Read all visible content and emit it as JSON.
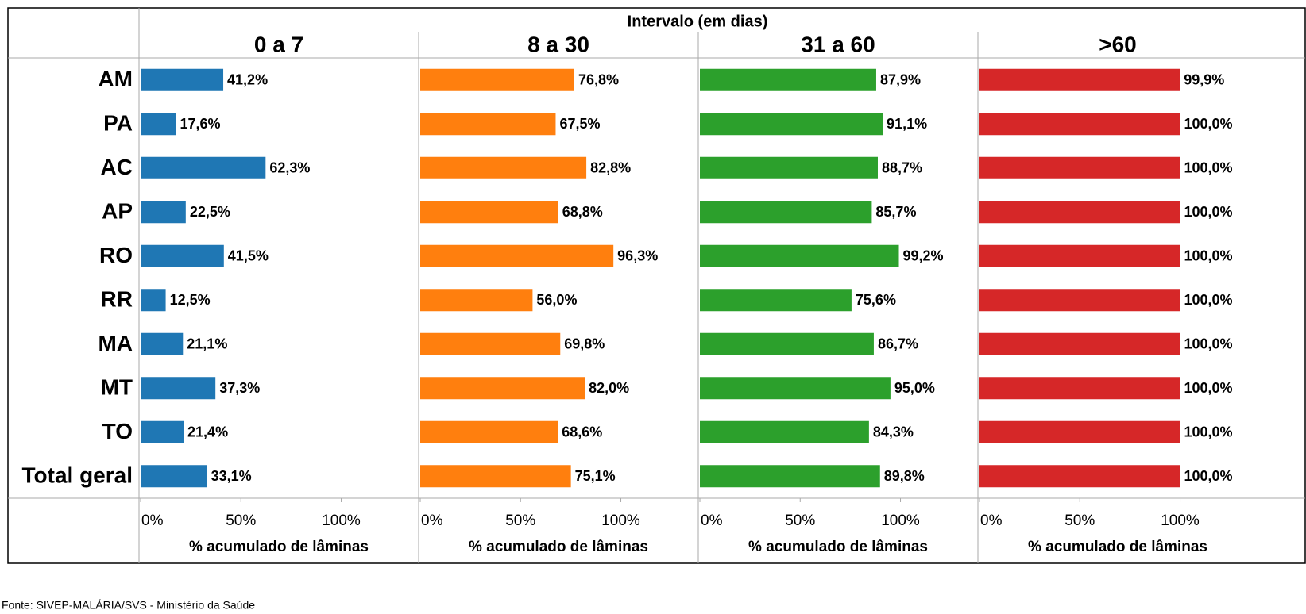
{
  "chart_data": {
    "type": "bar",
    "orientation": "horizontal",
    "title": "Intervalo (em dias)",
    "categories": [
      "AM",
      "PA",
      "AC",
      "AP",
      "RO",
      "RR",
      "MA",
      "MT",
      "TO",
      "Total geral"
    ],
    "series": [
      {
        "name": "0 a 7",
        "color": "#1f77b4",
        "values": [
          41.2,
          17.6,
          62.3,
          22.5,
          41.5,
          12.5,
          21.1,
          37.3,
          21.4,
          33.1
        ],
        "value_labels": [
          "41,2%",
          "17,6%",
          "62,3%",
          "22,5%",
          "41,5%",
          "12,5%",
          "21,1%",
          "37,3%",
          "21,4%",
          "33,1%"
        ]
      },
      {
        "name": "8 a 30",
        "color": "#ff7f0e",
        "values": [
          76.8,
          67.5,
          82.8,
          68.8,
          96.3,
          56.0,
          69.8,
          82.0,
          68.6,
          75.1
        ],
        "value_labels": [
          "76,8%",
          "67,5%",
          "82,8%",
          "68,8%",
          "96,3%",
          "56,0%",
          "69,8%",
          "82,0%",
          "68,6%",
          "75,1%"
        ]
      },
      {
        "name": "31 a 60",
        "color": "#2ca02c",
        "values": [
          87.9,
          91.1,
          88.7,
          85.7,
          99.2,
          75.6,
          86.7,
          95.0,
          84.3,
          89.8
        ],
        "value_labels": [
          "87,9%",
          "91,1%",
          "88,7%",
          "85,7%",
          "99,2%",
          "75,6%",
          "86,7%",
          "95,0%",
          "84,3%",
          "89,8%"
        ]
      },
      {
        "name": ">60",
        "color": "#d62728",
        "values": [
          99.9,
          100,
          100,
          100,
          100,
          100,
          100,
          100,
          100,
          100
        ],
        "value_labels": [
          "99,9%",
          "100,0%",
          "100,0%",
          "100,0%",
          "100,0%",
          "100,0%",
          "100,0%",
          "100,0%",
          "100,0%",
          "100,0%"
        ]
      }
    ],
    "xlabel": "% acumulado de lâminas",
    "xlim": [
      0,
      138.6
    ],
    "xticks": [
      {
        "value": 0,
        "label": "0%"
      },
      {
        "value": 50,
        "label": "50%"
      },
      {
        "value": 100,
        "label": "100%"
      }
    ]
  },
  "source": "Fonte: SIVEP-MALÁRIA/SVS - Ministério da Saúde"
}
